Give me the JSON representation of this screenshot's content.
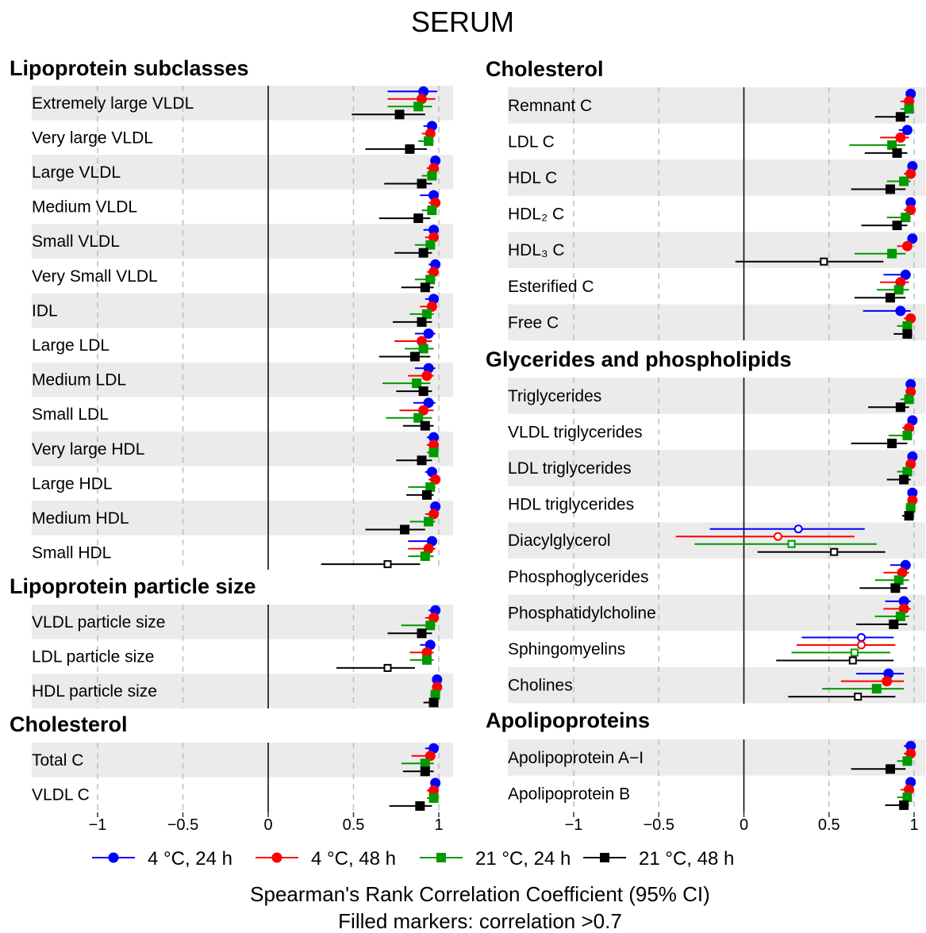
{
  "chart_data": {
    "type": "forest",
    "title": "SERUM",
    "xlabel": "Spearman's Rank Correlation Coefficient (95% CI)",
    "note": "Filled markers: correlation >0.7",
    "xlim": [
      -1.0,
      1.0
    ],
    "ticks": [
      -1,
      -0.5,
      0,
      0.5,
      1
    ],
    "tick_labels": [
      "−1",
      "−0.5",
      "0",
      "0.5",
      "1"
    ],
    "gridlines": "dashed at −1, −0.5, 0.5, 1; solid at 0",
    "series": [
      {
        "name": "4 °C, 24 h",
        "color": "#0000ff",
        "marker": "circle"
      },
      {
        "name": "4 °C, 48 h",
        "color": "#ff0000",
        "marker": "circle"
      },
      {
        "name": "21 °C, 24 h",
        "color": "#009900",
        "marker": "square"
      },
      {
        "name": "21 °C, 48 h",
        "color": "#000000",
        "marker": "square"
      }
    ],
    "panels": [
      {
        "name": "Lipoprotein subclasses",
        "column": "left",
        "rows": [
          {
            "label": "Extremely large VLDL",
            "values": [
              [
                0.91,
                0.7,
                0.99
              ],
              [
                0.9,
                0.7,
                0.98
              ],
              [
                0.88,
                0.7,
                0.96
              ],
              [
                0.77,
                0.49,
                0.92
              ]
            ]
          },
          {
            "label": "Very large VLDL",
            "values": [
              [
                0.96,
                0.91,
                0.99
              ],
              [
                0.95,
                0.9,
                0.98
              ],
              [
                0.94,
                0.88,
                0.97
              ],
              [
                0.83,
                0.57,
                0.93
              ]
            ]
          },
          {
            "label": "Large VLDL",
            "values": [
              [
                0.98,
                0.95,
                0.99
              ],
              [
                0.97,
                0.93,
                0.99
              ],
              [
                0.96,
                0.9,
                0.98
              ],
              [
                0.9,
                0.68,
                0.96
              ]
            ]
          },
          {
            "label": "Medium VLDL",
            "values": [
              [
                0.97,
                0.89,
                0.99
              ],
              [
                0.98,
                0.94,
                0.99
              ],
              [
                0.96,
                0.9,
                0.98
              ],
              [
                0.88,
                0.65,
                0.95
              ]
            ]
          },
          {
            "label": "Small VLDL",
            "values": [
              [
                0.97,
                0.91,
                0.99
              ],
              [
                0.97,
                0.92,
                0.99
              ],
              [
                0.95,
                0.86,
                0.98
              ],
              [
                0.91,
                0.74,
                0.96
              ]
            ]
          },
          {
            "label": "Very Small VLDL",
            "values": [
              [
                0.98,
                0.94,
                0.99
              ],
              [
                0.97,
                0.93,
                0.99
              ],
              [
                0.95,
                0.86,
                0.98
              ],
              [
                0.92,
                0.78,
                0.97
              ]
            ]
          },
          {
            "label": "IDL",
            "values": [
              [
                0.97,
                0.92,
                0.99
              ],
              [
                0.96,
                0.89,
                0.98
              ],
              [
                0.93,
                0.83,
                0.97
              ],
              [
                0.9,
                0.73,
                0.96
              ]
            ]
          },
          {
            "label": "Large LDL",
            "values": [
              [
                0.94,
                0.86,
                0.98
              ],
              [
                0.9,
                0.74,
                0.96
              ],
              [
                0.91,
                0.8,
                0.97
              ],
              [
                0.86,
                0.65,
                0.95
              ]
            ]
          },
          {
            "label": "Medium LDL",
            "values": [
              [
                0.94,
                0.86,
                0.98
              ],
              [
                0.93,
                0.82,
                0.97
              ],
              [
                0.87,
                0.67,
                0.95
              ],
              [
                0.91,
                0.75,
                0.96
              ]
            ]
          },
          {
            "label": "Small LDL",
            "values": [
              [
                0.94,
                0.85,
                0.98
              ],
              [
                0.91,
                0.77,
                0.97
              ],
              [
                0.88,
                0.69,
                0.96
              ],
              [
                0.92,
                0.79,
                0.97
              ]
            ]
          },
          {
            "label": "Very large HDL",
            "values": [
              [
                0.97,
                0.93,
                0.99
              ],
              [
                0.97,
                0.93,
                0.99
              ],
              [
                0.97,
                0.93,
                0.99
              ],
              [
                0.9,
                0.75,
                0.96
              ]
            ]
          },
          {
            "label": "Large HDL",
            "values": [
              [
                0.96,
                0.92,
                0.99
              ],
              [
                0.98,
                0.94,
                0.99
              ],
              [
                0.95,
                0.82,
                0.98
              ],
              [
                0.93,
                0.81,
                0.97
              ]
            ]
          },
          {
            "label": "Medium HDL",
            "values": [
              [
                0.98,
                0.95,
                0.99
              ],
              [
                0.97,
                0.92,
                0.99
              ],
              [
                0.94,
                0.83,
                0.98
              ],
              [
                0.8,
                0.57,
                0.92
              ]
            ]
          },
          {
            "label": "Small HDL",
            "values": [
              [
                0.96,
                0.82,
                0.99
              ],
              [
                0.94,
                0.82,
                0.98
              ],
              [
                0.92,
                0.82,
                0.97
              ],
              [
                0.7,
                0.31,
                0.89
              ]
            ]
          }
        ]
      },
      {
        "name": "Lipoprotein particle size",
        "column": "left",
        "rows": [
          {
            "label": "VLDL particle size",
            "values": [
              [
                0.98,
                0.94,
                0.99
              ],
              [
                0.97,
                0.92,
                0.99
              ],
              [
                0.95,
                0.78,
                0.98
              ],
              [
                0.9,
                0.7,
                0.96
              ]
            ]
          },
          {
            "label": "LDL particle size",
            "values": [
              [
                0.95,
                0.89,
                0.98
              ],
              [
                0.93,
                0.83,
                0.97
              ],
              [
                0.93,
                0.83,
                0.97
              ],
              [
                0.7,
                0.4,
                0.86
              ]
            ]
          },
          {
            "label": "HDL particle size",
            "values": [
              [
                0.99,
                0.98,
                1.0
              ],
              [
                0.99,
                0.97,
                1.0
              ],
              [
                0.98,
                0.95,
                0.99
              ],
              [
                0.97,
                0.91,
                0.99
              ]
            ]
          }
        ]
      },
      {
        "name": "Cholesterol",
        "column": "left",
        "rows": [
          {
            "label": "Total C",
            "values": [
              [
                0.97,
                0.92,
                0.99
              ],
              [
                0.95,
                0.84,
                0.98
              ],
              [
                0.92,
                0.78,
                0.97
              ],
              [
                0.92,
                0.79,
                0.97
              ]
            ]
          },
          {
            "label": "VLDL C",
            "values": [
              [
                0.98,
                0.95,
                0.99
              ],
              [
                0.97,
                0.93,
                0.99
              ],
              [
                0.97,
                0.93,
                0.99
              ],
              [
                0.89,
                0.71,
                0.96
              ]
            ]
          }
        ]
      },
      {
        "name": "Cholesterol",
        "column": "right",
        "rows": [
          {
            "label": "Remnant C",
            "values": [
              [
                0.98,
                0.95,
                0.99
              ],
              [
                0.97,
                0.92,
                0.99
              ],
              [
                0.97,
                0.92,
                0.99
              ],
              [
                0.92,
                0.77,
                0.97
              ]
            ]
          },
          {
            "label": "LDL C",
            "values": [
              [
                0.96,
                0.91,
                0.99
              ],
              [
                0.92,
                0.8,
                0.97
              ],
              [
                0.87,
                0.62,
                0.95
              ],
              [
                0.9,
                0.71,
                0.96
              ]
            ]
          },
          {
            "label": "HDL C",
            "values": [
              [
                0.99,
                0.97,
                1.0
              ],
              [
                0.98,
                0.94,
                0.99
              ],
              [
                0.94,
                0.84,
                0.98
              ],
              [
                0.86,
                0.63,
                0.95
              ]
            ]
          },
          {
            "label": "HDL₂ C",
            "values": [
              [
                0.98,
                0.96,
                0.99
              ],
              [
                0.98,
                0.94,
                0.99
              ],
              [
                0.95,
                0.84,
                0.98
              ],
              [
                0.9,
                0.69,
                0.96
              ]
            ]
          },
          {
            "label": "HDL₃ C",
            "values": [
              [
                0.99,
                0.97,
                1.0
              ],
              [
                0.96,
                0.9,
                0.99
              ],
              [
                0.87,
                0.65,
                0.95
              ],
              [
                0.47,
                -0.05,
                0.82
              ]
            ]
          },
          {
            "label": "Esterified C",
            "values": [
              [
                0.95,
                0.82,
                0.98
              ],
              [
                0.92,
                0.8,
                0.97
              ],
              [
                0.91,
                0.78,
                0.97
              ],
              [
                0.86,
                0.65,
                0.95
              ]
            ]
          },
          {
            "label": "Free C",
            "values": [
              [
                0.92,
                0.7,
                0.98
              ],
              [
                0.98,
                0.94,
                0.99
              ],
              [
                0.96,
                0.9,
                0.98
              ],
              [
                0.96,
                0.88,
                0.99
              ]
            ]
          }
        ]
      },
      {
        "name": "Glycerides and phospholipids",
        "column": "right",
        "rows": [
          {
            "label": "Triglycerides",
            "values": [
              [
                0.98,
                0.95,
                0.99
              ],
              [
                0.98,
                0.95,
                0.99
              ],
              [
                0.97,
                0.92,
                0.99
              ],
              [
                0.92,
                0.73,
                0.97
              ]
            ]
          },
          {
            "label": "VLDL triglycerides",
            "values": [
              [
                0.99,
                0.97,
                1.0
              ],
              [
                0.97,
                0.93,
                0.99
              ],
              [
                0.96,
                0.85,
                0.99
              ],
              [
                0.87,
                0.63,
                0.96
              ]
            ]
          },
          {
            "label": "LDL triglycerides",
            "values": [
              [
                0.99,
                0.97,
                1.0
              ],
              [
                0.98,
                0.95,
                0.99
              ],
              [
                0.96,
                0.9,
                0.99
              ],
              [
                0.94,
                0.84,
                0.98
              ]
            ]
          },
          {
            "label": "HDL triglycerides",
            "values": [
              [
                0.99,
                0.98,
                1.0
              ],
              [
                0.99,
                0.98,
                1.0
              ],
              [
                0.98,
                0.95,
                0.99
              ],
              [
                0.97,
                0.93,
                0.99
              ]
            ]
          },
          {
            "label": "Diacylglycerol",
            "values": [
              [
                0.32,
                -0.2,
                0.71
              ],
              [
                0.2,
                -0.4,
                0.65
              ],
              [
                0.28,
                -0.29,
                0.78
              ],
              [
                0.53,
                0.08,
                0.83
              ]
            ]
          },
          {
            "label": "Phosphoglycerides",
            "values": [
              [
                0.95,
                0.86,
                0.98
              ],
              [
                0.93,
                0.82,
                0.97
              ],
              [
                0.91,
                0.77,
                0.97
              ],
              [
                0.89,
                0.68,
                0.96
              ]
            ]
          },
          {
            "label": "Phosphatidylcholine",
            "values": [
              [
                0.94,
                0.83,
                0.98
              ],
              [
                0.94,
                0.82,
                0.98
              ],
              [
                0.92,
                0.77,
                0.97
              ],
              [
                0.88,
                0.66,
                0.96
              ]
            ]
          },
          {
            "label": "Sphingomyelins",
            "values": [
              [
                0.69,
                0.34,
                0.88
              ],
              [
                0.69,
                0.31,
                0.89
              ],
              [
                0.65,
                0.28,
                0.86
              ],
              [
                0.64,
                0.19,
                0.88
              ]
            ]
          },
          {
            "label": "Cholines",
            "values": [
              [
                0.85,
                0.66,
                0.94
              ],
              [
                0.84,
                0.57,
                0.94
              ],
              [
                0.78,
                0.46,
                0.94
              ],
              [
                0.67,
                0.26,
                0.89
              ]
            ]
          }
        ]
      },
      {
        "name": "Apolipoproteins",
        "column": "right",
        "rows": [
          {
            "label": "Apolipoprotein A−I",
            "values": [
              [
                0.98,
                0.94,
                0.99
              ],
              [
                0.98,
                0.94,
                0.99
              ],
              [
                0.96,
                0.9,
                0.99
              ],
              [
                0.86,
                0.63,
                0.95
              ]
            ]
          },
          {
            "label": "Apolipoprotein B",
            "values": [
              [
                0.98,
                0.95,
                0.99
              ],
              [
                0.97,
                0.92,
                0.99
              ],
              [
                0.96,
                0.9,
                0.98
              ],
              [
                0.94,
                0.83,
                0.97
              ]
            ]
          }
        ]
      }
    ]
  }
}
